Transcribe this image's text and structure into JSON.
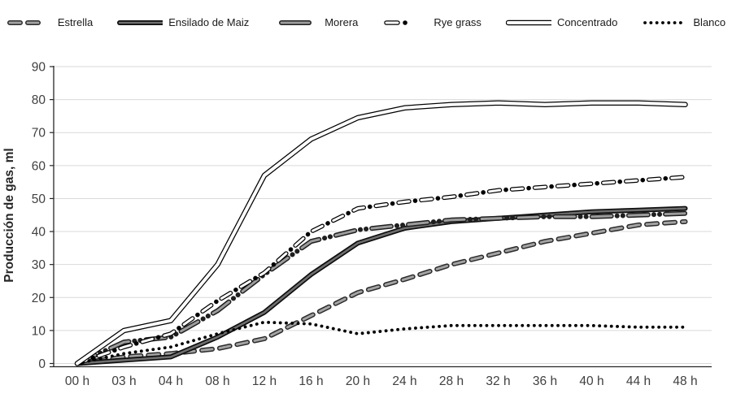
{
  "legend": {
    "items": [
      {
        "label": "Estrella",
        "style": "estrella"
      },
      {
        "label": "Ensilado de Maiz",
        "style": "ensilado"
      },
      {
        "label": "Morera",
        "style": "morera"
      },
      {
        "label": "Rye grass",
        "style": "rye"
      },
      {
        "label": "Concentrado",
        "style": "concentrado"
      },
      {
        "label": "Blanco",
        "style": "blanco"
      }
    ]
  },
  "axes": {
    "y_title": "Producción de gas, ml",
    "y_ticks": [
      0,
      10,
      20,
      30,
      40,
      50,
      60,
      70,
      80,
      90
    ],
    "x_labels": [
      "00 h",
      "03 h",
      "04 h",
      "08 h",
      "12 h",
      "16 h",
      "20 h",
      "24 h",
      "28 h",
      "32 h",
      "36 h",
      "40 h",
      "44 h",
      "48 h"
    ]
  },
  "colors": {
    "grid": "#d9d9d9",
    "axis_line": "#262626",
    "tick_text": "#404040",
    "y_title_text": "#262626",
    "legend_text": "#1a1a1a",
    "background": "#ffffff"
  },
  "line_styles": {
    "estrella": {
      "outer": "#2b2b2b",
      "inner": "#a3a3a3"
    },
    "ensilado": {
      "outer": "#0d0d0d",
      "inner": "#6e6e6e"
    },
    "morera": {
      "outer": "#1f1f1f",
      "inner": "#9c9c9c"
    },
    "rye": {
      "outer": "#000000",
      "inner": "#ffffff"
    },
    "concentrado": {
      "outer": "#000000",
      "inner": "#ffffff"
    },
    "blanco": {
      "outer": "#000000",
      "inner": "#000000"
    }
  },
  "chart_data": {
    "type": "line",
    "title": "",
    "xlabel": "",
    "ylabel": "Producción de gas, ml",
    "ylim": [
      0,
      90
    ],
    "grid": true,
    "legend_position": "top",
    "categories": [
      "00 h",
      "03 h",
      "04 h",
      "08 h",
      "12 h",
      "16 h",
      "20 h",
      "24 h",
      "28 h",
      "32 h",
      "36 h",
      "40 h",
      "44 h",
      "48 h"
    ],
    "series": [
      {
        "name": "Estrella",
        "style": "estrella",
        "values": [
          0,
          2,
          3,
          4.5,
          7.5,
          14.5,
          21.5,
          25.5,
          30,
          33.5,
          37,
          39.5,
          42,
          43
        ]
      },
      {
        "name": "Ensilado de Maiz",
        "style": "ensilado",
        "values": [
          0,
          1,
          2,
          8,
          15.5,
          27,
          36.5,
          41,
          43,
          44,
          45,
          46,
          46.5,
          47
        ]
      },
      {
        "name": "Morera",
        "style": "morera",
        "values": [
          0,
          6.5,
          8,
          16,
          27,
          37,
          40.5,
          42,
          43.5,
          44,
          44.5,
          44.5,
          45,
          45.5
        ]
      },
      {
        "name": "Rye grass",
        "style": "rye",
        "values": [
          0,
          5,
          9,
          19,
          27.5,
          40,
          47,
          49,
          50.5,
          52.5,
          53.5,
          54.5,
          55.5,
          56.5
        ]
      },
      {
        "name": "Concentrado",
        "style": "concentrado",
        "values": [
          0,
          10,
          13,
          30,
          57,
          68,
          74.5,
          77.5,
          78.5,
          79,
          78.5,
          79,
          79,
          78.5
        ]
      },
      {
        "name": "Blanco",
        "style": "blanco",
        "values": [
          0,
          3,
          5,
          9,
          12.5,
          12,
          9,
          10.5,
          11.5,
          11.5,
          11.5,
          11.5,
          11,
          11
        ]
      }
    ]
  }
}
